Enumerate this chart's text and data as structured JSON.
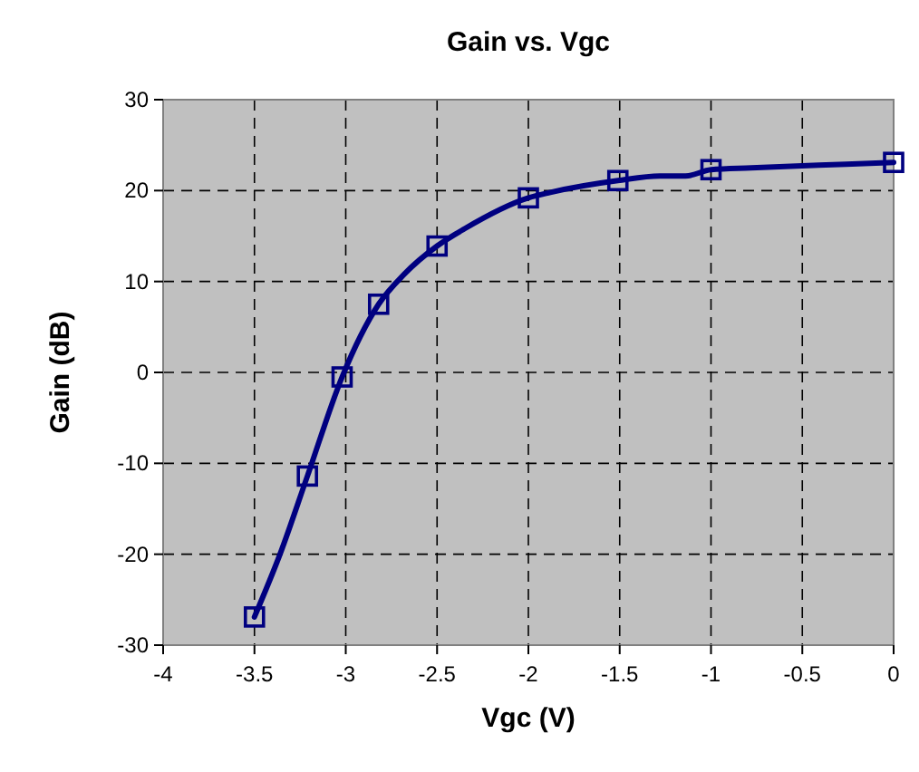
{
  "chart_data": {
    "type": "line",
    "title": "Gain vs. Vgc",
    "xlabel": "Vgc (V)",
    "ylabel": "Gain (dB)",
    "xlim": [
      -4,
      0
    ],
    "xticks": [
      -4,
      -3.5,
      -3,
      -2.5,
      -2,
      -1.5,
      -1,
      -0.5,
      0
    ],
    "ylim": [
      -30,
      30
    ],
    "yticks": [
      -30,
      -20,
      -10,
      0,
      10,
      20,
      30
    ],
    "grid": true,
    "line_style": "solid",
    "series": [
      {
        "marker": "none",
        "color": "#000080",
        "x": [
          -3.5,
          -3.36,
          -3.21,
          -3.02,
          -2.82,
          -2.68,
          -2.5,
          -2.35,
          -2.0,
          -1.88,
          -1.51,
          -1.28,
          -1.14,
          -1.0,
          -0.78,
          -0.26,
          0
        ],
        "values": [
          -26.9,
          -20,
          -11.4,
          -0.5,
          7.5,
          10.8,
          13.9,
          15.8,
          19.2,
          19.8,
          21.1,
          21.6,
          21.6,
          22.3,
          22.5,
          22.9,
          23.1
        ]
      },
      {
        "type": "scatter",
        "marker": "square",
        "color": "#000080",
        "x": [
          -3.5,
          -3.21,
          -3.02,
          -2.82,
          -2.5,
          -2.0,
          -1.51,
          -1.0,
          0
        ],
        "values": [
          -26.9,
          -11.4,
          -0.5,
          7.5,
          13.9,
          19.2,
          21.1,
          22.3,
          23.1
        ]
      }
    ]
  }
}
